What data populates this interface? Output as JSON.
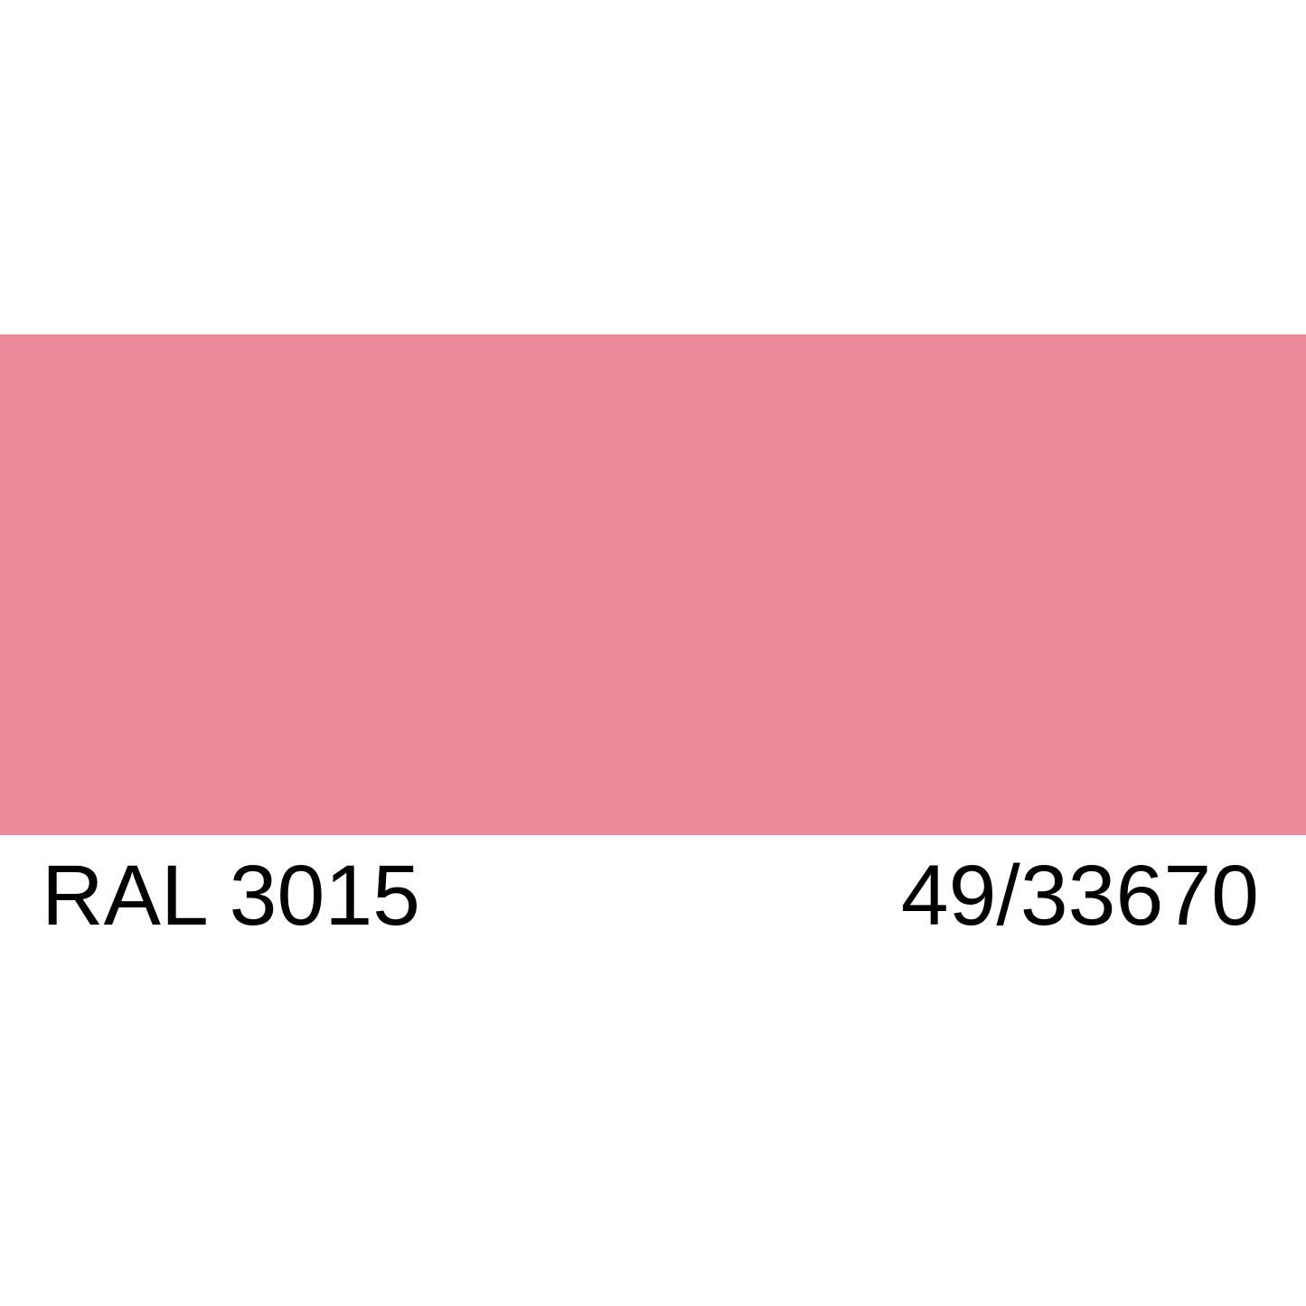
{
  "swatch": {
    "color": "#E9899A"
  },
  "labels": {
    "ral_code": "RAL 3015",
    "product_code": "49/33670"
  }
}
